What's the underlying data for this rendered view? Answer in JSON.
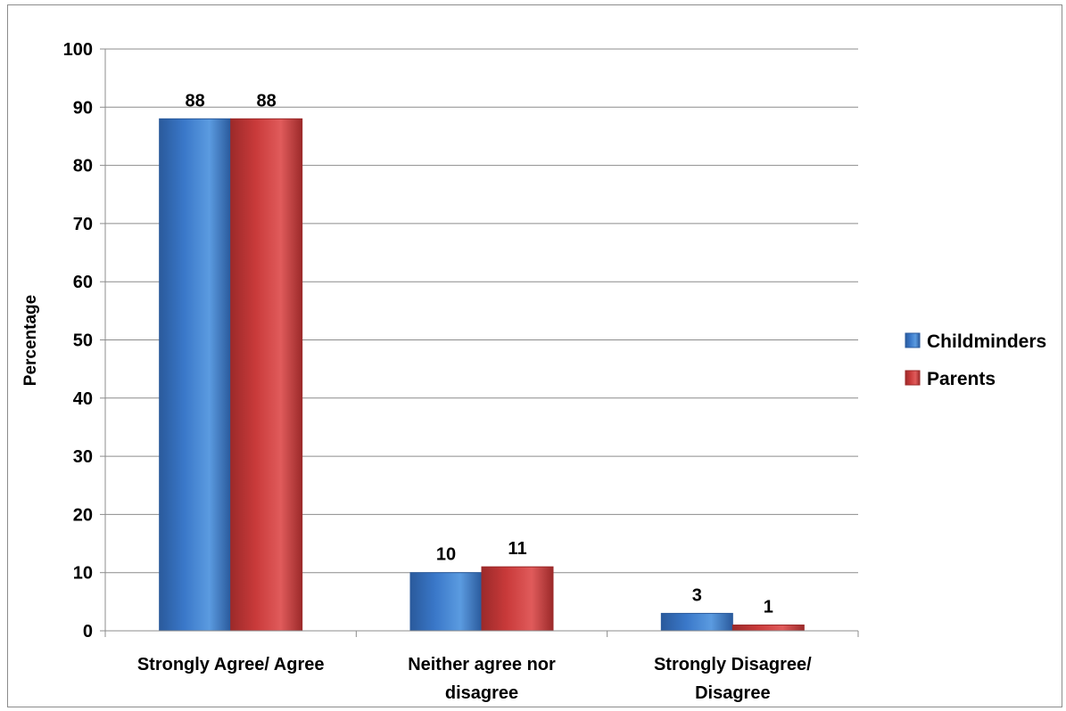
{
  "chart_data": {
    "type": "bar",
    "categories": [
      [
        "Strongly Agree/ Agree"
      ],
      [
        "Neither agree nor",
        "disagree"
      ],
      [
        "Strongly Disagree/",
        "Disagree"
      ]
    ],
    "series": [
      {
        "name": "Childminders",
        "values": [
          88,
          10,
          3
        ],
        "color": "#3a78c9",
        "light": "#5b9be0",
        "dark": "#2a5a9c"
      },
      {
        "name": "Parents",
        "values": [
          88,
          11,
          1
        ],
        "color": "#c93a3a",
        "light": "#e05b5b",
        "dark": "#9c2a2a"
      }
    ],
    "ylabel": "Percentage",
    "xlabel": "",
    "ylim": [
      0,
      100
    ],
    "yticks": [
      0,
      10,
      20,
      30,
      40,
      50,
      60,
      70,
      80,
      90,
      100
    ],
    "grid": true,
    "legend": "right"
  }
}
